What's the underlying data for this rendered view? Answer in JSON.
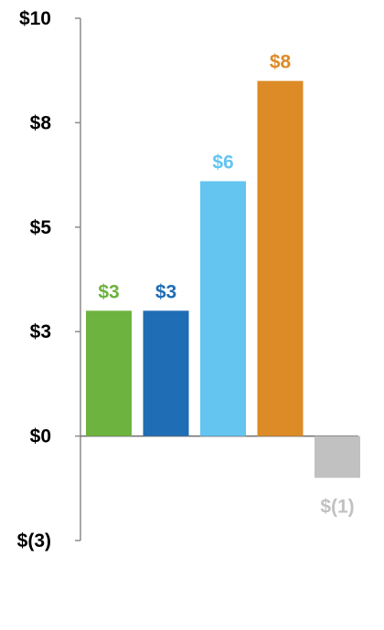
{
  "chart_data": {
    "type": "bar",
    "values": [
      3,
      3,
      6,
      8,
      -1
    ],
    "value_positions": [
      3,
      3,
      6.1,
      8.5,
      -1
    ],
    "data_labels": [
      "$3",
      "$3",
      "$6",
      "$8",
      "$(1)"
    ],
    "colors": [
      "#6db33f",
      "#1f6db5",
      "#63c5f0",
      "#dc8b26",
      "#c1c1c1"
    ],
    "ylim": [
      -2.5,
      10
    ],
    "yticks": [
      {
        "value": 10,
        "label": "$10"
      },
      {
        "value": 7.5,
        "label": "$8"
      },
      {
        "value": 5,
        "label": "$5"
      },
      {
        "value": 2.5,
        "label": "$3"
      },
      {
        "value": 0,
        "label": "$0"
      },
      {
        "value": -2.5,
        "label": "$(3)"
      }
    ],
    "grid": false,
    "legend": "none"
  }
}
